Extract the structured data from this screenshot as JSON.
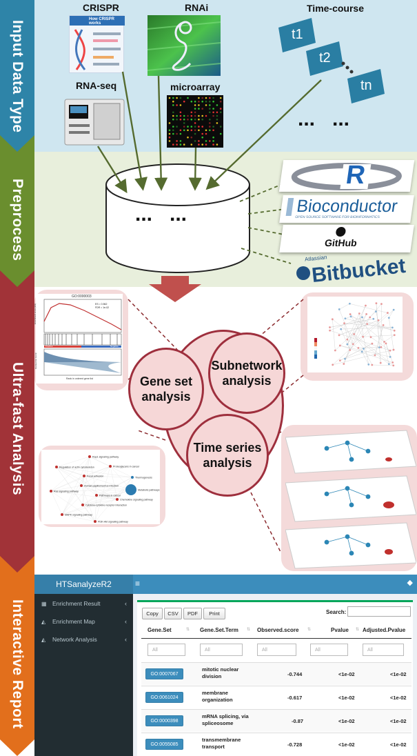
{
  "stages": [
    {
      "label": "Input Data Type",
      "color": "#2e84a8"
    },
    {
      "label": "Preprocess",
      "color": "#6a8e2e"
    },
    {
      "label": "Ultra-fast Analysis",
      "color": "#a13338"
    },
    {
      "label": "Interactive Report",
      "color": "#e26f1c"
    }
  ],
  "input_sources": {
    "crispr": "CRISPR",
    "rnai": "RNAi",
    "time_course": "Time-course",
    "rnaseq": "RNA-seq",
    "microarray": "microarray",
    "tp1": "t1",
    "tp2": "t2",
    "tpn": "tn",
    "ellipsis": "...   ...",
    "crispr_thumb_title": "How CRISPR works"
  },
  "preprocess": {
    "cylinder_text": "...   ...",
    "logos": [
      "R",
      "Bioconductor",
      "GitHub",
      "Bitbucket"
    ],
    "bioconductor_sub": "OPEN SOURCE SOFTWARE FOR BIOINFORMATICS",
    "atlassian": "Atlassian"
  },
  "analysis": {
    "gene_set": "Gene set analysis",
    "subnetwork": "Subnetwork analysis",
    "time_series": "Time series analysis",
    "gsea_title": "GO:0000003",
    "gsea_positive": "Positive",
    "gsea_negative": "Negative",
    "gsea_xlabel": "Rank in ordered gene list",
    "gsea_ylabel": "Ranked list metric",
    "gsea_es_label": "Enrichment score (ES)",
    "gsea_stats": "ES = 0.562\nFDR = 1e-02",
    "enrich_map_nodes": [
      "Rap1 signaling pathway",
      "Regulation of actin cytoskeleton",
      "Proteoglycans in cancer",
      "Focal adhesion",
      "Thermogenesis",
      "Human papillomavirus infection",
      "Metabolic pathways",
      "Pathways in cancer",
      "Ras signaling pathway",
      "Chemokine signaling pathway",
      "Cytokine-cytokine receptor interaction",
      "MAPK signaling pathway",
      "PI3K-Akt signaling pathway"
    ]
  },
  "report": {
    "app_title": "HTSanalyzeR2",
    "sidebar": [
      {
        "label": "Enrichment Result",
        "icon": "table-icon"
      },
      {
        "label": "Enrichment Map",
        "icon": "area-chart-icon"
      },
      {
        "label": "Network Analysis",
        "icon": "area-chart-icon"
      }
    ],
    "buttons": [
      "Copy",
      "CSV",
      "PDF",
      "Print"
    ],
    "search_label": "Search:",
    "columns": [
      "Gene.Set",
      "Gene.Set.Term",
      "Observed.score",
      "Pvalue",
      "Adjusted.Pvalue"
    ],
    "filter_placeholder": "All",
    "rows": [
      {
        "gene_set": "GO:0007067",
        "term": "mitotic nuclear division",
        "score": "-0.744",
        "pvalue": "<1e-02",
        "adj": "<1e-02"
      },
      {
        "gene_set": "GO:0061024",
        "term": "membrane organization",
        "score": "-0.617",
        "pvalue": "<1e-02",
        "adj": "<1e-02"
      },
      {
        "gene_set": "GO:0000398",
        "term": "mRNA splicing, via spliceosome",
        "score": "-0.87",
        "pvalue": "<1e-02",
        "adj": "<1e-02"
      },
      {
        "gene_set": "GO:0055085",
        "term": "transmembrane transport",
        "score": "-0.728",
        "pvalue": "<1e-02",
        "adj": "<1e-02"
      }
    ]
  },
  "colors": {
    "input_bg": "#cfe6f0",
    "preprocess_bg": "#e8efdc",
    "arrow_green": "#556b2f",
    "analysis_red": "#a13338",
    "pink": "#f4dada",
    "report_header": "#3c8dbc",
    "report_sidebar": "#222d32"
  }
}
